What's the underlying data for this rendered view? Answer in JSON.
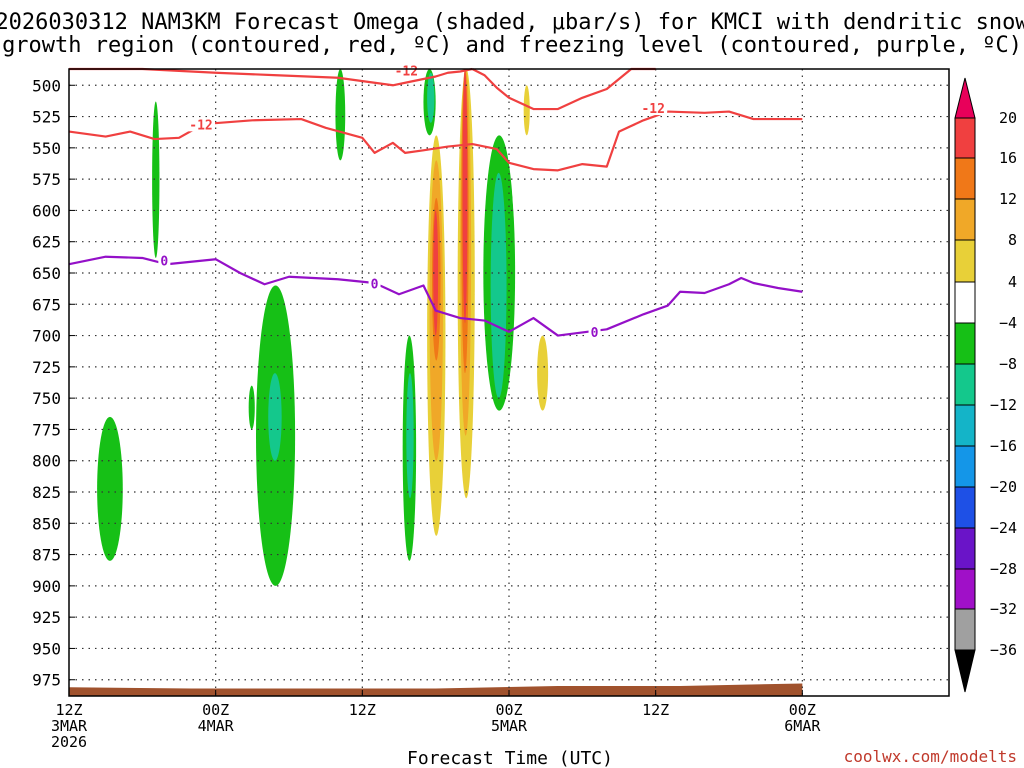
{
  "title": {
    "line1": "2026030312 NAM3KM Forecast Omega (shaded, μbar/s) for KMCI with dendritic snow",
    "line2": "growth region (contoured, red, ºC) and freezing level (contoured, purple, ºC)"
  },
  "xlabel": "Forecast Time (UTC)",
  "credit": "coolwx.com/modelts",
  "chart_data": {
    "type": "heatmap",
    "title": "2026030312 NAM3KM Forecast Omega (shaded, μbar/s) for KMCI with dendritic snow growth region (contoured, red, ºC) and freezing level (contoured, purple, ºC)",
    "xlabel": "Forecast Time (UTC)",
    "ylabel": "Pressure (hPa)",
    "xlim_hours": [
      0,
      72
    ],
    "ylim": [
      487,
      988
    ],
    "y_ticks": [
      500,
      525,
      550,
      575,
      600,
      625,
      650,
      675,
      700,
      725,
      750,
      775,
      800,
      825,
      850,
      875,
      900,
      925,
      950,
      975
    ],
    "x_ticks": [
      {
        "hour": 0,
        "line1": "12Z",
        "line2": "3MAR",
        "line3": "2026"
      },
      {
        "hour": 12,
        "line1": "00Z",
        "line2": "4MAR",
        "line3": ""
      },
      {
        "hour": 24,
        "line1": "12Z",
        "line2": "",
        "line3": ""
      },
      {
        "hour": 36,
        "line1": "00Z",
        "line2": "5MAR",
        "line3": ""
      },
      {
        "hour": 48,
        "line1": "12Z",
        "line2": "",
        "line3": ""
      },
      {
        "hour": 60,
        "line1": "00Z",
        "line2": "6MAR",
        "line3": ""
      }
    ],
    "colorbar": {
      "levels": [
        20,
        16,
        12,
        8,
        4,
        -4,
        -8,
        -12,
        -16,
        -20,
        -24,
        -28,
        -32,
        -36
      ],
      "colors": [
        "#e8005a",
        "#f04040",
        "#f07818",
        "#f0a828",
        "#e8d038",
        "#ffffff",
        "#16c016",
        "#14c88c",
        "#14b4c8",
        "#1496e8",
        "#1e50e6",
        "#6a14c8",
        "#a010c8",
        "#a0a0a0",
        "#000000"
      ]
    },
    "shaded_regions": [
      {
        "value": 4,
        "hour_range": [
          8.6,
          9.6
        ],
        "p_range": [
          487,
          550
        ]
      },
      {
        "value": -4,
        "hour_range": [
          6.8,
          7.4
        ],
        "p_range": [
          513,
          638
        ]
      },
      {
        "value": -4,
        "hour_range": [
          21.8,
          22.6
        ],
        "p_range": [
          487,
          560
        ]
      },
      {
        "value": -4,
        "hour_range": [
          2.3,
          4.4
        ],
        "p_range": [
          765,
          880
        ]
      },
      {
        "value": -4,
        "hour_range": [
          15.3,
          18.5
        ],
        "p_range": [
          660,
          900
        ]
      },
      {
        "value": -8,
        "hour_range": [
          16.3,
          17.4
        ],
        "p_range": [
          730,
          800
        ]
      },
      {
        "value": -4,
        "hour_range": [
          14.7,
          15.2
        ],
        "p_range": [
          740,
          775
        ]
      },
      {
        "value": 4,
        "hour_range": [
          23.6,
          26.5
        ],
        "p_range": [
          600,
          760
        ]
      },
      {
        "value": 4,
        "hour_range": [
          24.8,
          28.5
        ],
        "p_range": [
          487,
          600
        ]
      },
      {
        "value": 4,
        "hour_range": [
          26.6,
          28.0
        ],
        "p_range": [
          600,
          790
        ]
      },
      {
        "value": -4,
        "hour_range": [
          27.3,
          28.4
        ],
        "p_range": [
          700,
          880
        ]
      },
      {
        "value": -8,
        "hour_range": [
          27.6,
          28.2
        ],
        "p_range": [
          730,
          830
        ]
      },
      {
        "value": 4,
        "hour_range": [
          29.0,
          30.8
        ],
        "p_range": [
          487,
          960
        ]
      },
      {
        "value": -4,
        "hour_range": [
          29.0,
          30.0
        ],
        "p_range": [
          487,
          540
        ]
      },
      {
        "value": -8,
        "hour_range": [
          29.3,
          29.9
        ],
        "p_range": [
          490,
          530
        ]
      },
      {
        "value": 8,
        "hour_range": [
          29.3,
          30.8
        ],
        "p_range": [
          540,
          860
        ]
      },
      {
        "value": 12,
        "hour_range": [
          29.5,
          30.6
        ],
        "p_range": [
          560,
          800
        ]
      },
      {
        "value": 16,
        "hour_range": [
          29.7,
          30.4
        ],
        "p_range": [
          590,
          720
        ]
      },
      {
        "value": 20,
        "hour_range": [
          29.8,
          30.2
        ],
        "p_range": [
          600,
          700
        ]
      },
      {
        "value": 4,
        "hour_range": [
          31.5,
          35.4
        ],
        "p_range": [
          487,
          920
        ]
      },
      {
        "value": 8,
        "hour_range": [
          31.8,
          33.2
        ],
        "p_range": [
          487,
          830
        ]
      },
      {
        "value": 12,
        "hour_range": [
          32.0,
          32.9
        ],
        "p_range": [
          487,
          780
        ]
      },
      {
        "value": 16,
        "hour_range": [
          32.1,
          32.7
        ],
        "p_range": [
          487,
          730
        ]
      },
      {
        "value": 20,
        "hour_range": [
          32.2,
          32.6
        ],
        "p_range": [
          487,
          690
        ]
      },
      {
        "value": -4,
        "hour_range": [
          33.9,
          36.5
        ],
        "p_range": [
          540,
          760
        ]
      },
      {
        "value": -8,
        "hour_range": [
          34.5,
          35.8
        ],
        "p_range": [
          570,
          750
        ]
      },
      {
        "value": 4,
        "hour_range": [
          36.2,
          37.6
        ],
        "p_range": [
          487,
          625
        ]
      },
      {
        "value": 8,
        "hour_range": [
          37.2,
          37.7
        ],
        "p_range": [
          500,
          540
        ]
      },
      {
        "value": 4,
        "hour_range": [
          38.0,
          39.8
        ],
        "p_range": [
          690,
          790
        ]
      },
      {
        "value": 8,
        "hour_range": [
          38.3,
          39.2
        ],
        "p_range": [
          700,
          760
        ]
      },
      {
        "value": 4,
        "hour_range": [
          45.0,
          45.8
        ],
        "p_range": [
          860,
          890
        ]
      },
      {
        "value": 4,
        "hour_range": [
          46.6,
          47.2
        ],
        "p_range": [
          868,
          888
        ]
      }
    ],
    "series": [
      {
        "name": "-12 ºC isotherm (upper)",
        "color": "#f04040",
        "points": [
          [
            0,
            487
          ],
          [
            6,
            487
          ],
          [
            12,
            490
          ],
          [
            17,
            492
          ],
          [
            22,
            494
          ],
          [
            25,
            498
          ],
          [
            26.5,
            500
          ],
          [
            28,
            497
          ],
          [
            30,
            493
          ],
          [
            31,
            490
          ],
          [
            32,
            489
          ],
          [
            33,
            487
          ]
        ]
      },
      {
        "name": "-12 ºC isotherm",
        "color": "#f04040",
        "label": "-12",
        "points": [
          [
            0,
            537
          ],
          [
            3,
            541
          ],
          [
            5,
            537
          ],
          [
            7,
            543
          ],
          [
            9,
            542
          ],
          [
            11,
            531
          ],
          [
            15,
            528
          ],
          [
            19,
            527
          ],
          [
            21,
            534
          ],
          [
            24,
            542
          ],
          [
            25,
            554
          ],
          [
            26.5,
            546
          ],
          [
            27.5,
            554
          ],
          [
            29,
            552
          ],
          [
            31,
            549
          ],
          [
            33,
            547
          ],
          [
            35,
            551
          ],
          [
            36,
            562
          ],
          [
            38,
            567
          ],
          [
            40,
            568
          ],
          [
            42,
            563
          ],
          [
            44,
            565
          ],
          [
            45,
            537
          ],
          [
            47,
            528
          ],
          [
            49,
            521
          ],
          [
            52,
            522
          ],
          [
            54,
            521
          ],
          [
            56,
            527
          ],
          [
            58,
            527
          ],
          [
            60,
            527
          ]
        ]
      },
      {
        "name": "-12 ºC isotherm (mid upper)",
        "color": "#f04040",
        "points": [
          [
            33,
            487
          ],
          [
            34,
            492
          ],
          [
            35,
            502
          ],
          [
            36,
            510
          ],
          [
            38,
            519
          ],
          [
            40,
            519
          ],
          [
            42,
            510
          ],
          [
            44,
            503
          ],
          [
            45,
            495
          ],
          [
            46,
            487
          ],
          [
            48,
            487
          ]
        ]
      },
      {
        "name": "0 ºC freezing level",
        "color": "#9410c8",
        "label": "0",
        "points": [
          [
            0,
            643
          ],
          [
            3,
            637
          ],
          [
            6,
            638
          ],
          [
            8,
            643
          ],
          [
            12,
            639
          ],
          [
            14,
            650
          ],
          [
            16,
            659
          ],
          [
            18,
            653
          ],
          [
            22,
            655
          ],
          [
            25,
            658
          ],
          [
            27,
            667
          ],
          [
            29,
            660
          ],
          [
            30,
            680
          ],
          [
            32,
            686
          ],
          [
            34,
            688
          ],
          [
            36,
            697
          ],
          [
            38,
            686
          ],
          [
            40,
            700
          ],
          [
            44,
            695
          ],
          [
            47,
            683
          ],
          [
            49,
            676
          ],
          [
            50,
            665
          ],
          [
            52,
            666
          ],
          [
            54,
            659
          ],
          [
            55,
            654
          ],
          [
            56,
            658
          ],
          [
            58,
            662
          ],
          [
            60,
            665
          ]
        ]
      }
    ],
    "terrain": {
      "color": "#a0522d",
      "surface_p": [
        [
          0,
          981
        ],
        [
          10,
          982
        ],
        [
          20,
          982
        ],
        [
          30,
          982
        ],
        [
          40,
          980
        ],
        [
          50,
          980
        ],
        [
          60,
          978
        ]
      ]
    }
  }
}
